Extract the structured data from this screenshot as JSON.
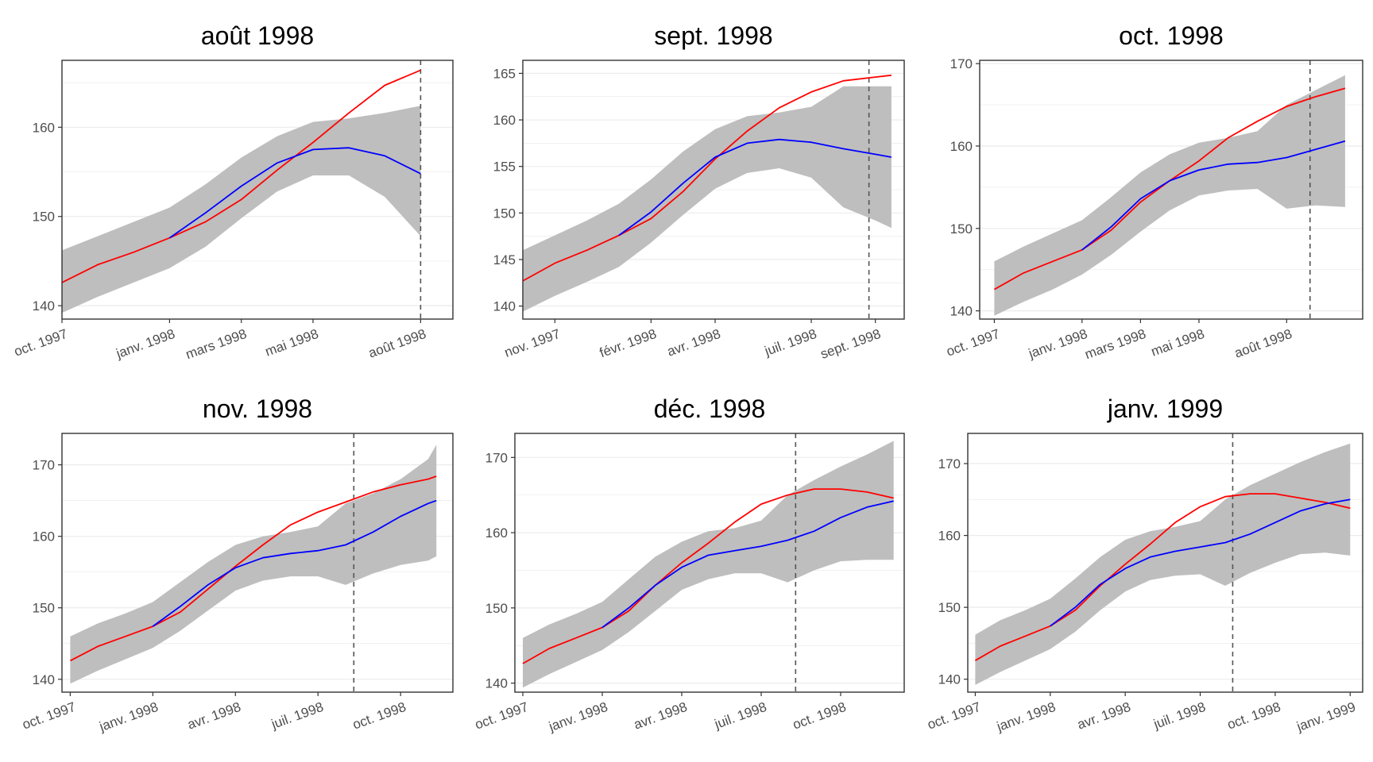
{
  "colors": {
    "observed": "#ff0000",
    "forecast": "#0000ff",
    "band": "#bebebe",
    "vline": "#555555",
    "grid": "#ebebeb",
    "frame": "#333333"
  },
  "chart_data": [
    {
      "type": "line",
      "title": "août 1998",
      "xlim": [
        0,
        10.9
      ],
      "ylim": [
        138.5,
        167.5
      ],
      "yticks": [
        140,
        150,
        160
      ],
      "xticks": [
        {
          "x": 0,
          "label": "oct. 1997"
        },
        {
          "x": 3,
          "label": "janv. 1998"
        },
        {
          "x": 5,
          "label": "mars 1998"
        },
        {
          "x": 7,
          "label": "mai 1998"
        },
        {
          "x": 10,
          "label": "août 1998"
        }
      ],
      "vline_x": 10,
      "series": [
        {
          "x": [
            0,
            1,
            2,
            3,
            4,
            5,
            6,
            7,
            8,
            9,
            10
          ],
          "values": [
            142.6,
            144.6,
            146.0,
            147.6,
            149.4,
            151.9,
            155.2,
            158.3,
            161.6,
            164.7,
            166.4
          ]
        },
        {
          "x": [
            3,
            4,
            5,
            6,
            7,
            8,
            9,
            10
          ],
          "values": [
            147.6,
            150.4,
            153.4,
            156.0,
            157.5,
            157.7,
            156.8,
            154.8
          ]
        }
      ],
      "band": {
        "x": [
          0,
          1,
          2,
          3,
          4,
          5,
          6,
          7,
          8,
          9,
          10
        ],
        "upper": [
          146.2,
          147.8,
          149.4,
          151.0,
          153.6,
          156.6,
          159.0,
          160.6,
          161.0,
          161.6,
          162.4
        ],
        "lower": [
          139.2,
          141.0,
          142.6,
          144.2,
          146.6,
          149.8,
          152.8,
          154.6,
          154.6,
          152.2,
          147.8
        ]
      }
    },
    {
      "type": "line",
      "title": "sept. 1998",
      "xlim": [
        0,
        11.9
      ],
      "ylim": [
        138.6,
        166.4
      ],
      "yticks": [
        140,
        145,
        150,
        155,
        160,
        165
      ],
      "xticks": [
        {
          "x": 1,
          "label": "nov. 1997"
        },
        {
          "x": 4,
          "label": "févr. 1998"
        },
        {
          "x": 6,
          "label": "avr. 1998"
        },
        {
          "x": 9,
          "label": "juil. 1998"
        },
        {
          "x": 11,
          "label": "sept. 1998"
        }
      ],
      "vline_x": 10.8,
      "series": [
        {
          "x": [
            0,
            1,
            2,
            3,
            4,
            5,
            6,
            7,
            8,
            9,
            10,
            11,
            11.5
          ],
          "values": [
            142.7,
            144.6,
            146.0,
            147.6,
            149.4,
            152.3,
            155.8,
            158.8,
            161.3,
            163.0,
            164.2,
            164.6,
            164.8
          ]
        },
        {
          "x": [
            3,
            4,
            5,
            6,
            7,
            8,
            9,
            10,
            11,
            11.5
          ],
          "values": [
            147.6,
            150.1,
            153.2,
            156.0,
            157.5,
            157.9,
            157.6,
            156.9,
            156.3,
            156.0
          ]
        }
      ],
      "band": {
        "x": [
          0,
          1,
          2,
          3,
          4,
          5,
          6,
          7,
          8,
          9,
          10,
          11,
          11.5
        ],
        "upper": [
          146.0,
          147.6,
          149.2,
          151.0,
          153.6,
          156.6,
          159.0,
          160.4,
          160.8,
          161.4,
          163.6,
          163.6,
          163.6
        ],
        "lower": [
          139.4,
          141.1,
          142.6,
          144.2,
          146.8,
          149.8,
          152.6,
          154.3,
          154.8,
          153.8,
          150.6,
          149.2,
          148.4
        ]
      }
    },
    {
      "type": "line",
      "title": "oct. 1998",
      "xlim": [
        -0.5,
        12.6
      ],
      "ylim": [
        139.0,
        170.4
      ],
      "yticks": [
        140,
        150,
        160,
        170
      ],
      "xticks": [
        {
          "x": 0,
          "label": "oct. 1997"
        },
        {
          "x": 3,
          "label": "janv. 1998"
        },
        {
          "x": 5,
          "label": "mars 1998"
        },
        {
          "x": 7,
          "label": "mai 1998"
        },
        {
          "x": 10,
          "label": "août 1998"
        }
      ],
      "vline_x": 10.8,
      "series": [
        {
          "x": [
            0,
            1,
            2,
            3,
            4,
            5,
            6,
            7,
            8,
            9,
            10,
            11,
            12
          ],
          "values": [
            142.6,
            144.6,
            146.0,
            147.4,
            149.8,
            153.2,
            155.8,
            158.2,
            161.0,
            163.0,
            164.8,
            166.0,
            167.0
          ]
        },
        {
          "x": [
            3,
            4,
            5,
            6,
            7,
            8,
            9,
            10,
            11,
            12
          ],
          "values": [
            147.4,
            150.2,
            153.6,
            155.8,
            157.1,
            157.8,
            158.0,
            158.6,
            159.6,
            160.6
          ]
        }
      ],
      "band": {
        "x": [
          0,
          1,
          2,
          3,
          4,
          5,
          6,
          7,
          8,
          9,
          10,
          11,
          12
        ],
        "upper": [
          146.0,
          147.8,
          149.4,
          151.0,
          153.8,
          156.8,
          159.0,
          160.4,
          161.0,
          161.8,
          165.0,
          166.8,
          168.6
        ],
        "lower": [
          139.4,
          141.1,
          142.6,
          144.4,
          146.8,
          149.6,
          152.2,
          154.0,
          154.6,
          154.8,
          152.4,
          152.8,
          152.6
        ]
      }
    },
    {
      "type": "line",
      "title": "nov. 1998",
      "xlim": [
        -0.3,
        13.9
      ],
      "ylim": [
        138.2,
        174.4
      ],
      "yticks": [
        140,
        150,
        160,
        170
      ],
      "xticks": [
        {
          "x": 0,
          "label": "oct. 1997"
        },
        {
          "x": 3,
          "label": "janv. 1998"
        },
        {
          "x": 6,
          "label": "avr. 1998"
        },
        {
          "x": 9,
          "label": "juil. 1998"
        },
        {
          "x": 12,
          "label": "oct. 1998"
        }
      ],
      "vline_x": 10.3,
      "series": [
        {
          "x": [
            0,
            1,
            2,
            3,
            4,
            5,
            6,
            7,
            8,
            9,
            10,
            11,
            12,
            13,
            13.3
          ],
          "values": [
            142.6,
            144.6,
            146.0,
            147.4,
            149.4,
            152.6,
            155.8,
            158.8,
            161.6,
            163.4,
            164.8,
            166.2,
            167.2,
            168.0,
            168.4
          ]
        },
        {
          "x": [
            3,
            4,
            5,
            6,
            7,
            8,
            9,
            10,
            11,
            12,
            13,
            13.3
          ],
          "values": [
            147.4,
            150.2,
            153.2,
            155.6,
            157.0,
            157.6,
            158.0,
            158.8,
            160.6,
            162.8,
            164.6,
            165.0
          ]
        }
      ],
      "band": {
        "x": [
          0,
          1,
          2,
          3,
          4,
          5,
          6,
          7,
          8,
          9,
          10,
          11,
          12,
          13,
          13.3
        ],
        "upper": [
          146.0,
          147.8,
          149.2,
          150.8,
          153.6,
          156.4,
          158.8,
          160.0,
          160.6,
          161.4,
          164.6,
          166.0,
          168.0,
          170.8,
          172.8
        ],
        "lower": [
          139.4,
          141.2,
          142.8,
          144.4,
          146.8,
          149.6,
          152.4,
          153.8,
          154.4,
          154.4,
          153.2,
          154.8,
          156.0,
          156.6,
          157.2
        ]
      }
    },
    {
      "type": "line",
      "title": "déc. 1998",
      "xlim": [
        -0.3,
        14.4
      ],
      "ylim": [
        138.8,
        173.2
      ],
      "yticks": [
        140,
        150,
        160,
        170
      ],
      "xticks": [
        {
          "x": 0,
          "label": "oct. 1997"
        },
        {
          "x": 3,
          "label": "janv. 1998"
        },
        {
          "x": 6,
          "label": "avr. 1998"
        },
        {
          "x": 9,
          "label": "juil. 1998"
        },
        {
          "x": 12,
          "label": "oct. 1998"
        }
      ],
      "vline_x": 10.3,
      "series": [
        {
          "x": [
            0,
            1,
            2,
            3,
            4,
            5,
            6,
            7,
            8,
            9,
            10,
            11,
            12,
            13,
            14
          ],
          "values": [
            142.6,
            144.6,
            146.0,
            147.4,
            149.6,
            153.0,
            156.0,
            158.6,
            161.4,
            163.8,
            165.0,
            165.8,
            165.8,
            165.4,
            164.6
          ]
        },
        {
          "x": [
            3,
            4,
            5,
            6,
            7,
            8,
            9,
            10,
            11,
            12,
            13,
            14
          ],
          "values": [
            147.4,
            150.0,
            153.0,
            155.4,
            157.0,
            157.6,
            158.2,
            159.0,
            160.2,
            162.0,
            163.4,
            164.2
          ]
        }
      ],
      "band": {
        "x": [
          0,
          1,
          2,
          3,
          4,
          5,
          6,
          7,
          8,
          9,
          10,
          11,
          12,
          13,
          14
        ],
        "upper": [
          146.0,
          147.8,
          149.2,
          150.8,
          153.8,
          156.8,
          158.8,
          160.2,
          160.6,
          161.6,
          165.0,
          167.0,
          168.8,
          170.4,
          172.2
        ],
        "lower": [
          139.4,
          141.2,
          142.8,
          144.4,
          146.8,
          149.6,
          152.4,
          153.8,
          154.6,
          154.6,
          153.4,
          155.0,
          156.2,
          156.4,
          156.4
        ]
      }
    },
    {
      "type": "line",
      "title": "janv. 1999",
      "xlim": [
        -0.3,
        15.5
      ],
      "ylim": [
        138.2,
        174.2
      ],
      "yticks": [
        140,
        150,
        160,
        170
      ],
      "xticks": [
        {
          "x": 0,
          "label": "oct. 1997"
        },
        {
          "x": 3,
          "label": "janv. 1998"
        },
        {
          "x": 6,
          "label": "avr. 1998"
        },
        {
          "x": 9,
          "label": "juil. 1998"
        },
        {
          "x": 12,
          "label": "oct. 1998"
        },
        {
          "x": 15,
          "label": "janv. 1999"
        }
      ],
      "vline_x": 10.3,
      "series": [
        {
          "x": [
            0,
            1,
            2,
            3,
            4,
            5,
            6,
            7,
            8,
            9,
            10,
            11,
            12,
            13,
            14,
            15
          ],
          "values": [
            142.6,
            144.6,
            146.0,
            147.4,
            149.6,
            153.0,
            156.0,
            158.8,
            161.8,
            164.0,
            165.4,
            165.8,
            165.8,
            165.2,
            164.6,
            163.8
          ]
        },
        {
          "x": [
            3,
            4,
            5,
            6,
            7,
            8,
            9,
            10,
            11,
            12,
            13,
            14,
            15
          ],
          "values": [
            147.4,
            150.0,
            153.2,
            155.4,
            157.0,
            157.8,
            158.4,
            159.0,
            160.2,
            161.8,
            163.4,
            164.4,
            165.0
          ]
        }
      ],
      "band": {
        "x": [
          0,
          1,
          2,
          3,
          4,
          5,
          6,
          7,
          8,
          9,
          10,
          11,
          12,
          13,
          14,
          15
        ],
        "upper": [
          146.2,
          148.2,
          149.6,
          151.2,
          154.0,
          157.0,
          159.4,
          160.6,
          161.2,
          162.0,
          165.0,
          167.0,
          168.6,
          170.2,
          171.6,
          172.8
        ],
        "lower": [
          139.2,
          141.0,
          142.6,
          144.2,
          146.6,
          149.6,
          152.2,
          153.8,
          154.4,
          154.6,
          153.0,
          154.8,
          156.2,
          157.4,
          157.6,
          157.2
        ]
      }
    }
  ]
}
